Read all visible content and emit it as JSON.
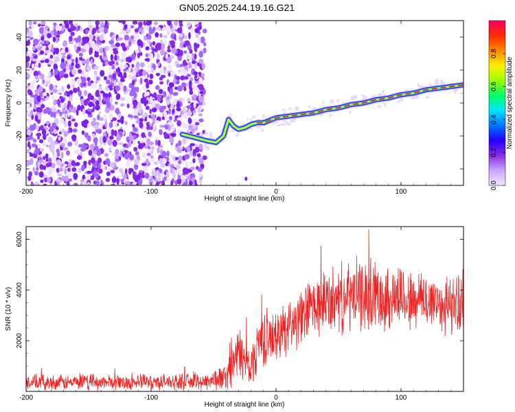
{
  "title": "GN05.2025.244.19.16.G21",
  "chart_data": [
    {
      "type": "heatmap",
      "xlabel": "Height of straight line (km)",
      "ylabel": "Frequency (Hz)",
      "xlim": [
        -200,
        150
      ],
      "ylim": [
        -50,
        50
      ],
      "x_ticks": [
        -200,
        -100,
        0,
        100
      ],
      "y_ticks": [
        -40,
        -20,
        0,
        20,
        40
      ],
      "colorbar": {
        "label": "Normalized spectral amplitude",
        "range": [
          0,
          1
        ],
        "ticks": [
          "0.0",
          "0.2",
          "0.4",
          "0.6",
          "0.8"
        ],
        "colors": [
          "#f0e6ff",
          "#c9a6ff",
          "#8a2be2",
          "#2200ff",
          "#0077ff",
          "#00e5ff",
          "#00ff66",
          "#99ff00",
          "#ffee00",
          "#ff8800",
          "#ff2a00",
          "#ff0066"
        ]
      },
      "signal_trace": {
        "x": [
          -75,
          -65,
          -55,
          -48,
          -42,
          -38,
          -34,
          -30,
          -25,
          -20,
          -15,
          -10,
          0,
          10,
          20,
          30,
          40,
          50,
          60,
          70,
          80,
          90,
          100,
          110,
          120,
          130,
          140,
          150
        ],
        "y": [
          -19,
          -21,
          -23,
          -24,
          -20,
          -10,
          -14,
          -16,
          -15,
          -13,
          -12,
          -12,
          -9,
          -8,
          -7,
          -6,
          -4,
          -3,
          -1,
          0,
          2,
          3,
          5,
          6,
          8,
          9,
          10,
          11
        ]
      },
      "noise_region_x": [
        -200,
        -57
      ]
    },
    {
      "type": "line",
      "xlabel": "Height of straight line (km)",
      "ylabel": "SNR (10 * v/v)",
      "xlim": [
        -200,
        150
      ],
      "ylim": [
        0,
        6500
      ],
      "x_ticks": [
        -200,
        -100,
        0,
        100
      ],
      "y_ticks": [
        2000,
        4000,
        6000
      ],
      "series_color": "#ee2222",
      "envelope": {
        "x": [
          -200,
          -150,
          -100,
          -60,
          -50,
          -40,
          -35,
          -30,
          -25,
          -20,
          -15,
          -10,
          -5,
          0,
          5,
          10,
          15,
          20,
          25,
          30,
          40,
          50,
          60,
          70,
          80,
          90,
          100,
          110,
          120,
          130,
          140,
          150
        ],
        "mean": [
          350,
          350,
          370,
          380,
          450,
          550,
          1100,
          1500,
          1200,
          900,
          1800,
          2200,
          2100,
          2100,
          2400,
          2700,
          2700,
          2800,
          3200,
          3300,
          3500,
          3600,
          3700,
          3800,
          3800,
          3700,
          3800,
          3500,
          3600,
          3500,
          3400,
          3500
        ],
        "spread": [
          250,
          250,
          250,
          280,
          350,
          450,
          700,
          900,
          800,
          700,
          900,
          1000,
          900,
          800,
          900,
          900,
          900,
          950,
          1000,
          1000,
          1100,
          1100,
          1200,
          1200,
          1200,
          1100,
          1100,
          1000,
          1000,
          1000,
          950,
          950
        ]
      }
    }
  ]
}
